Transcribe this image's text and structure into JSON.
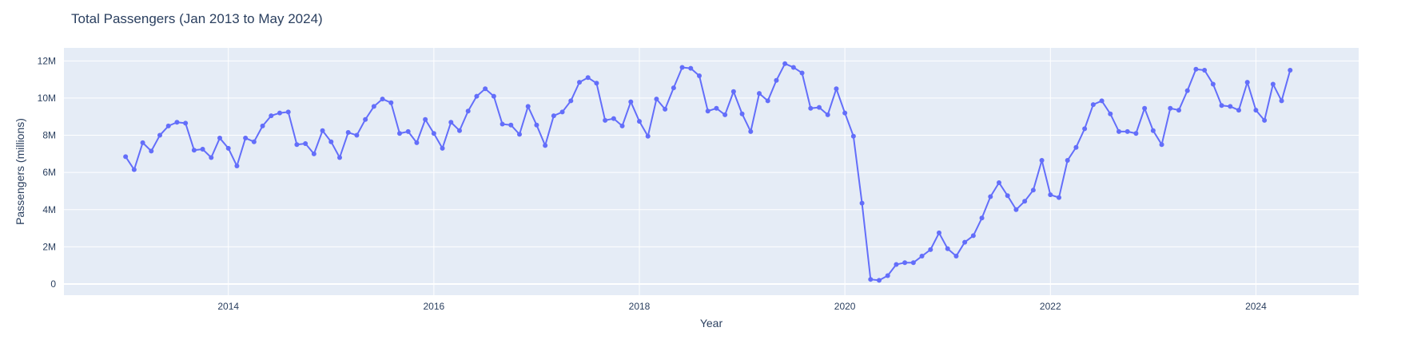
{
  "chart_data": {
    "type": "line",
    "title": "Total Passengers (Jan 2013 to May 2024)",
    "xlabel": "Year",
    "ylabel": "Passengers (millions)",
    "x_ticks": [
      "2014",
      "2016",
      "2018",
      "2020",
      "2022",
      "2024"
    ],
    "y_ticks": [
      "0",
      "2M",
      "4M",
      "6M",
      "8M",
      "10M",
      "12M"
    ],
    "xlim": [
      2012.4,
      2025.0
    ],
    "ylim": [
      -0.6,
      12.7
    ],
    "grid": true,
    "legend": "none",
    "colors": {
      "line": "#636efa",
      "plot_bg": "#e5ecf6",
      "grid": "#ffffff",
      "text": "#2a3f5f"
    },
    "series": [
      {
        "x": [
          "2013-01",
          "2013-02",
          "2013-03",
          "2013-04",
          "2013-05",
          "2013-06",
          "2013-07",
          "2013-08",
          "2013-09",
          "2013-10",
          "2013-11",
          "2013-12",
          "2014-01",
          "2014-02",
          "2014-03",
          "2014-04",
          "2014-05",
          "2014-06",
          "2014-07",
          "2014-08",
          "2014-09",
          "2014-10",
          "2014-11",
          "2014-12",
          "2015-01",
          "2015-02",
          "2015-03",
          "2015-04",
          "2015-05",
          "2015-06",
          "2015-07",
          "2015-08",
          "2015-09",
          "2015-10",
          "2015-11",
          "2015-12",
          "2016-01",
          "2016-02",
          "2016-03",
          "2016-04",
          "2016-05",
          "2016-06",
          "2016-07",
          "2016-08",
          "2016-09",
          "2016-10",
          "2016-11",
          "2016-12",
          "2017-01",
          "2017-02",
          "2017-03",
          "2017-04",
          "2017-05",
          "2017-06",
          "2017-07",
          "2017-08",
          "2017-09",
          "2017-10",
          "2017-11",
          "2017-12",
          "2018-01",
          "2018-02",
          "2018-03",
          "2018-04",
          "2018-05",
          "2018-06",
          "2018-07",
          "2018-08",
          "2018-09",
          "2018-10",
          "2018-11",
          "2018-12",
          "2019-01",
          "2019-02",
          "2019-03",
          "2019-04",
          "2019-05",
          "2019-06",
          "2019-07",
          "2019-08",
          "2019-09",
          "2019-10",
          "2019-11",
          "2019-12",
          "2020-01",
          "2020-02",
          "2020-03",
          "2020-04",
          "2020-05",
          "2020-06",
          "2020-07",
          "2020-08",
          "2020-09",
          "2020-10",
          "2020-11",
          "2020-12",
          "2021-01",
          "2021-02",
          "2021-03",
          "2021-04",
          "2021-05",
          "2021-06",
          "2021-07",
          "2021-08",
          "2021-09",
          "2021-10",
          "2021-11",
          "2021-12",
          "2022-01",
          "2022-02",
          "2022-03",
          "2022-04",
          "2022-05",
          "2022-06",
          "2022-07",
          "2022-08",
          "2022-09",
          "2022-10",
          "2022-11",
          "2022-12",
          "2023-01",
          "2023-02",
          "2023-03",
          "2023-04",
          "2023-05",
          "2023-06",
          "2023-07",
          "2023-08",
          "2023-09",
          "2023-10",
          "2023-11",
          "2023-12",
          "2024-01",
          "2024-02",
          "2024-03",
          "2024-04",
          "2024-05"
        ],
        "y": [
          6.85,
          6.15,
          7.6,
          7.15,
          8.0,
          8.5,
          8.7,
          8.65,
          7.2,
          7.25,
          6.8,
          7.85,
          7.3,
          6.35,
          7.85,
          7.65,
          8.5,
          9.05,
          9.2,
          9.25,
          7.5,
          7.55,
          7.0,
          8.25,
          7.65,
          6.8,
          8.15,
          8.0,
          8.85,
          9.55,
          9.95,
          9.75,
          8.1,
          8.2,
          7.6,
          8.85,
          8.1,
          7.3,
          8.7,
          8.25,
          9.3,
          10.1,
          10.5,
          10.1,
          8.6,
          8.55,
          8.05,
          9.55,
          8.55,
          7.45,
          9.05,
          9.25,
          9.85,
          10.85,
          11.1,
          10.8,
          8.8,
          8.9,
          8.5,
          9.8,
          8.75,
          7.95,
          9.95,
          9.4,
          10.55,
          11.65,
          11.6,
          11.2,
          9.3,
          9.45,
          9.1,
          10.35,
          9.15,
          8.2,
          10.25,
          9.85,
          10.95,
          11.85,
          11.65,
          11.35,
          9.45,
          9.5,
          9.1,
          10.5,
          9.2,
          7.95,
          4.35,
          0.25,
          0.2,
          0.45,
          1.05,
          1.15,
          1.15,
          1.5,
          1.85,
          2.75,
          1.9,
          1.5,
          2.25,
          2.6,
          3.55,
          4.7,
          5.45,
          4.75,
          4.0,
          4.45,
          5.05,
          6.65,
          4.8,
          4.65,
          6.65,
          7.35,
          8.35,
          9.65,
          9.85,
          9.15,
          8.2,
          8.2,
          8.1,
          9.45,
          8.25,
          7.5,
          9.45,
          9.35,
          10.4,
          11.55,
          11.5,
          10.75,
          9.6,
          9.55,
          9.35,
          10.85,
          9.35,
          8.8,
          10.75,
          9.85,
          11.5
        ]
      }
    ]
  }
}
